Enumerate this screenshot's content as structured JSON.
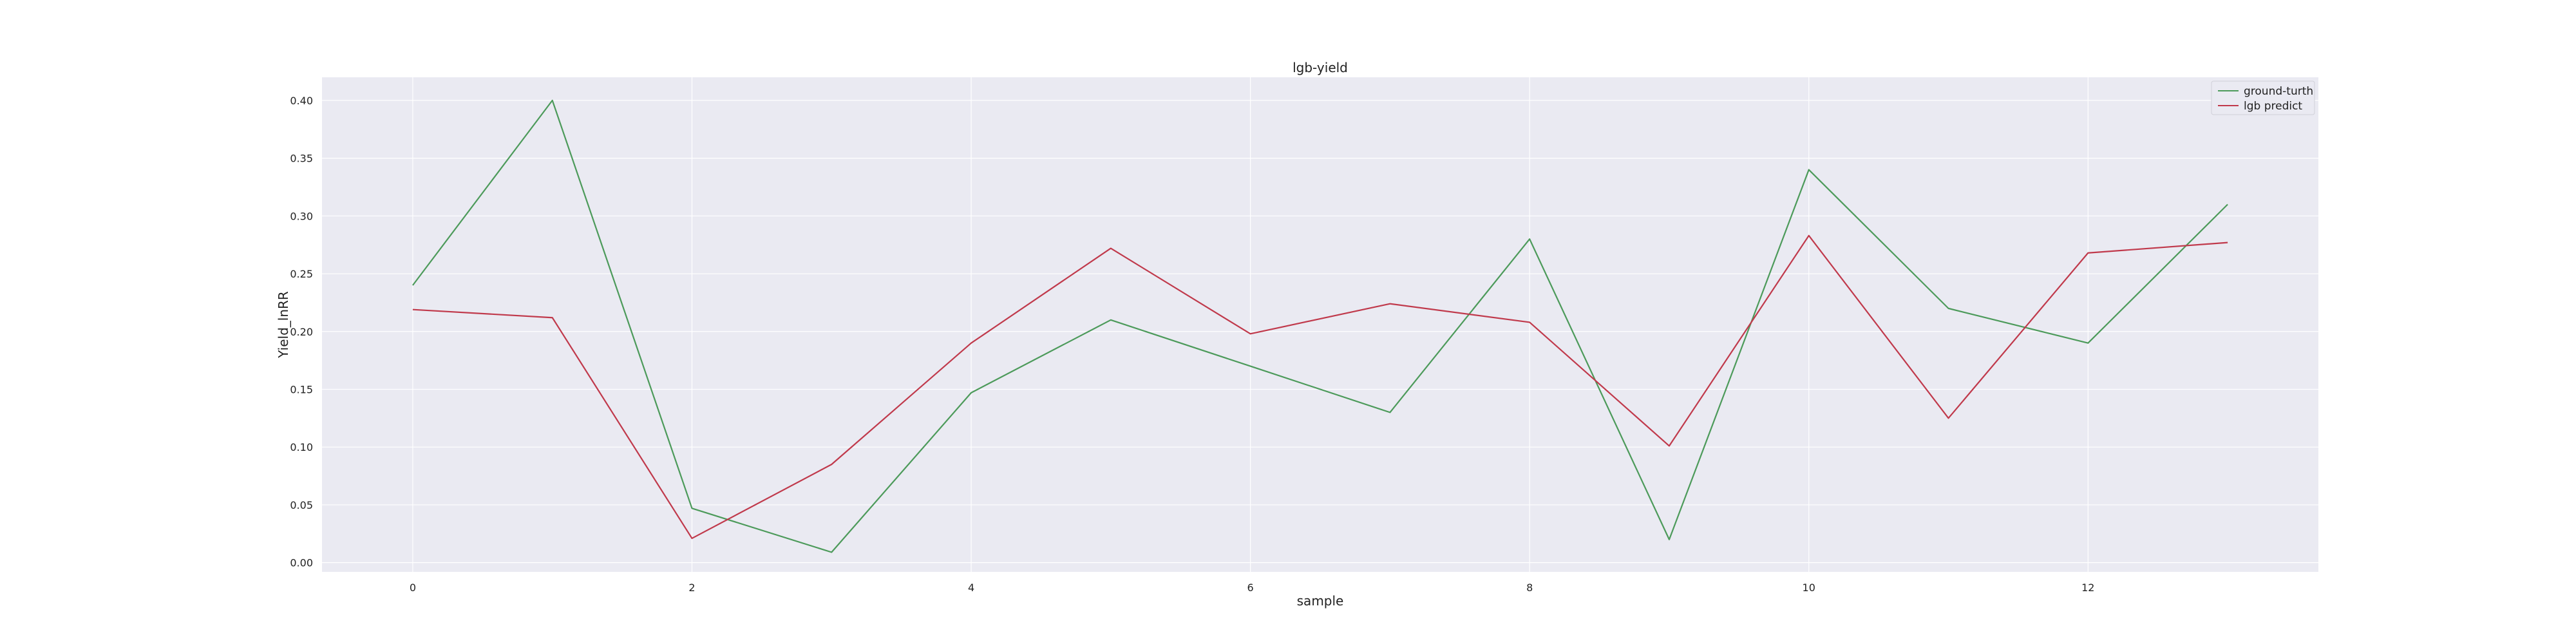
{
  "chart_data": {
    "type": "line",
    "title": "lgb-yield",
    "xlabel": "sample",
    "ylabel": "Yield_lnRR",
    "x": [
      0,
      1,
      2,
      3,
      4,
      5,
      6,
      7,
      8,
      9,
      10,
      11,
      12,
      13
    ],
    "xlim": [
      -0.65,
      13.65
    ],
    "ylim": [
      -0.008,
      0.42
    ],
    "xticks": [
      0,
      2,
      4,
      6,
      8,
      10,
      12
    ],
    "yticks": [
      0.0,
      0.05,
      0.1,
      0.15,
      0.2,
      0.25,
      0.3,
      0.35,
      0.4
    ],
    "ytick_labels": [
      "0.00",
      "0.05",
      "0.10",
      "0.15",
      "0.20",
      "0.25",
      "0.30",
      "0.35",
      "0.40"
    ],
    "grid": true,
    "legend_position": "top-right",
    "series": [
      {
        "name": "ground-turth",
        "color": "#4c9a5a",
        "values": [
          0.24,
          0.4,
          0.047,
          0.009,
          0.147,
          0.21,
          0.17,
          0.13,
          0.28,
          0.02,
          0.34,
          0.22,
          0.19,
          0.31
        ]
      },
      {
        "name": "lgb predict",
        "color": "#c0394b",
        "values": [
          0.219,
          0.212,
          0.021,
          0.085,
          0.19,
          0.272,
          0.198,
          0.224,
          0.208,
          0.101,
          0.283,
          0.125,
          0.268,
          0.277
        ]
      }
    ]
  },
  "colors": {
    "plot_background": "#eaeaf2",
    "grid": "#ffffff",
    "page_background": "#ffffff"
  }
}
